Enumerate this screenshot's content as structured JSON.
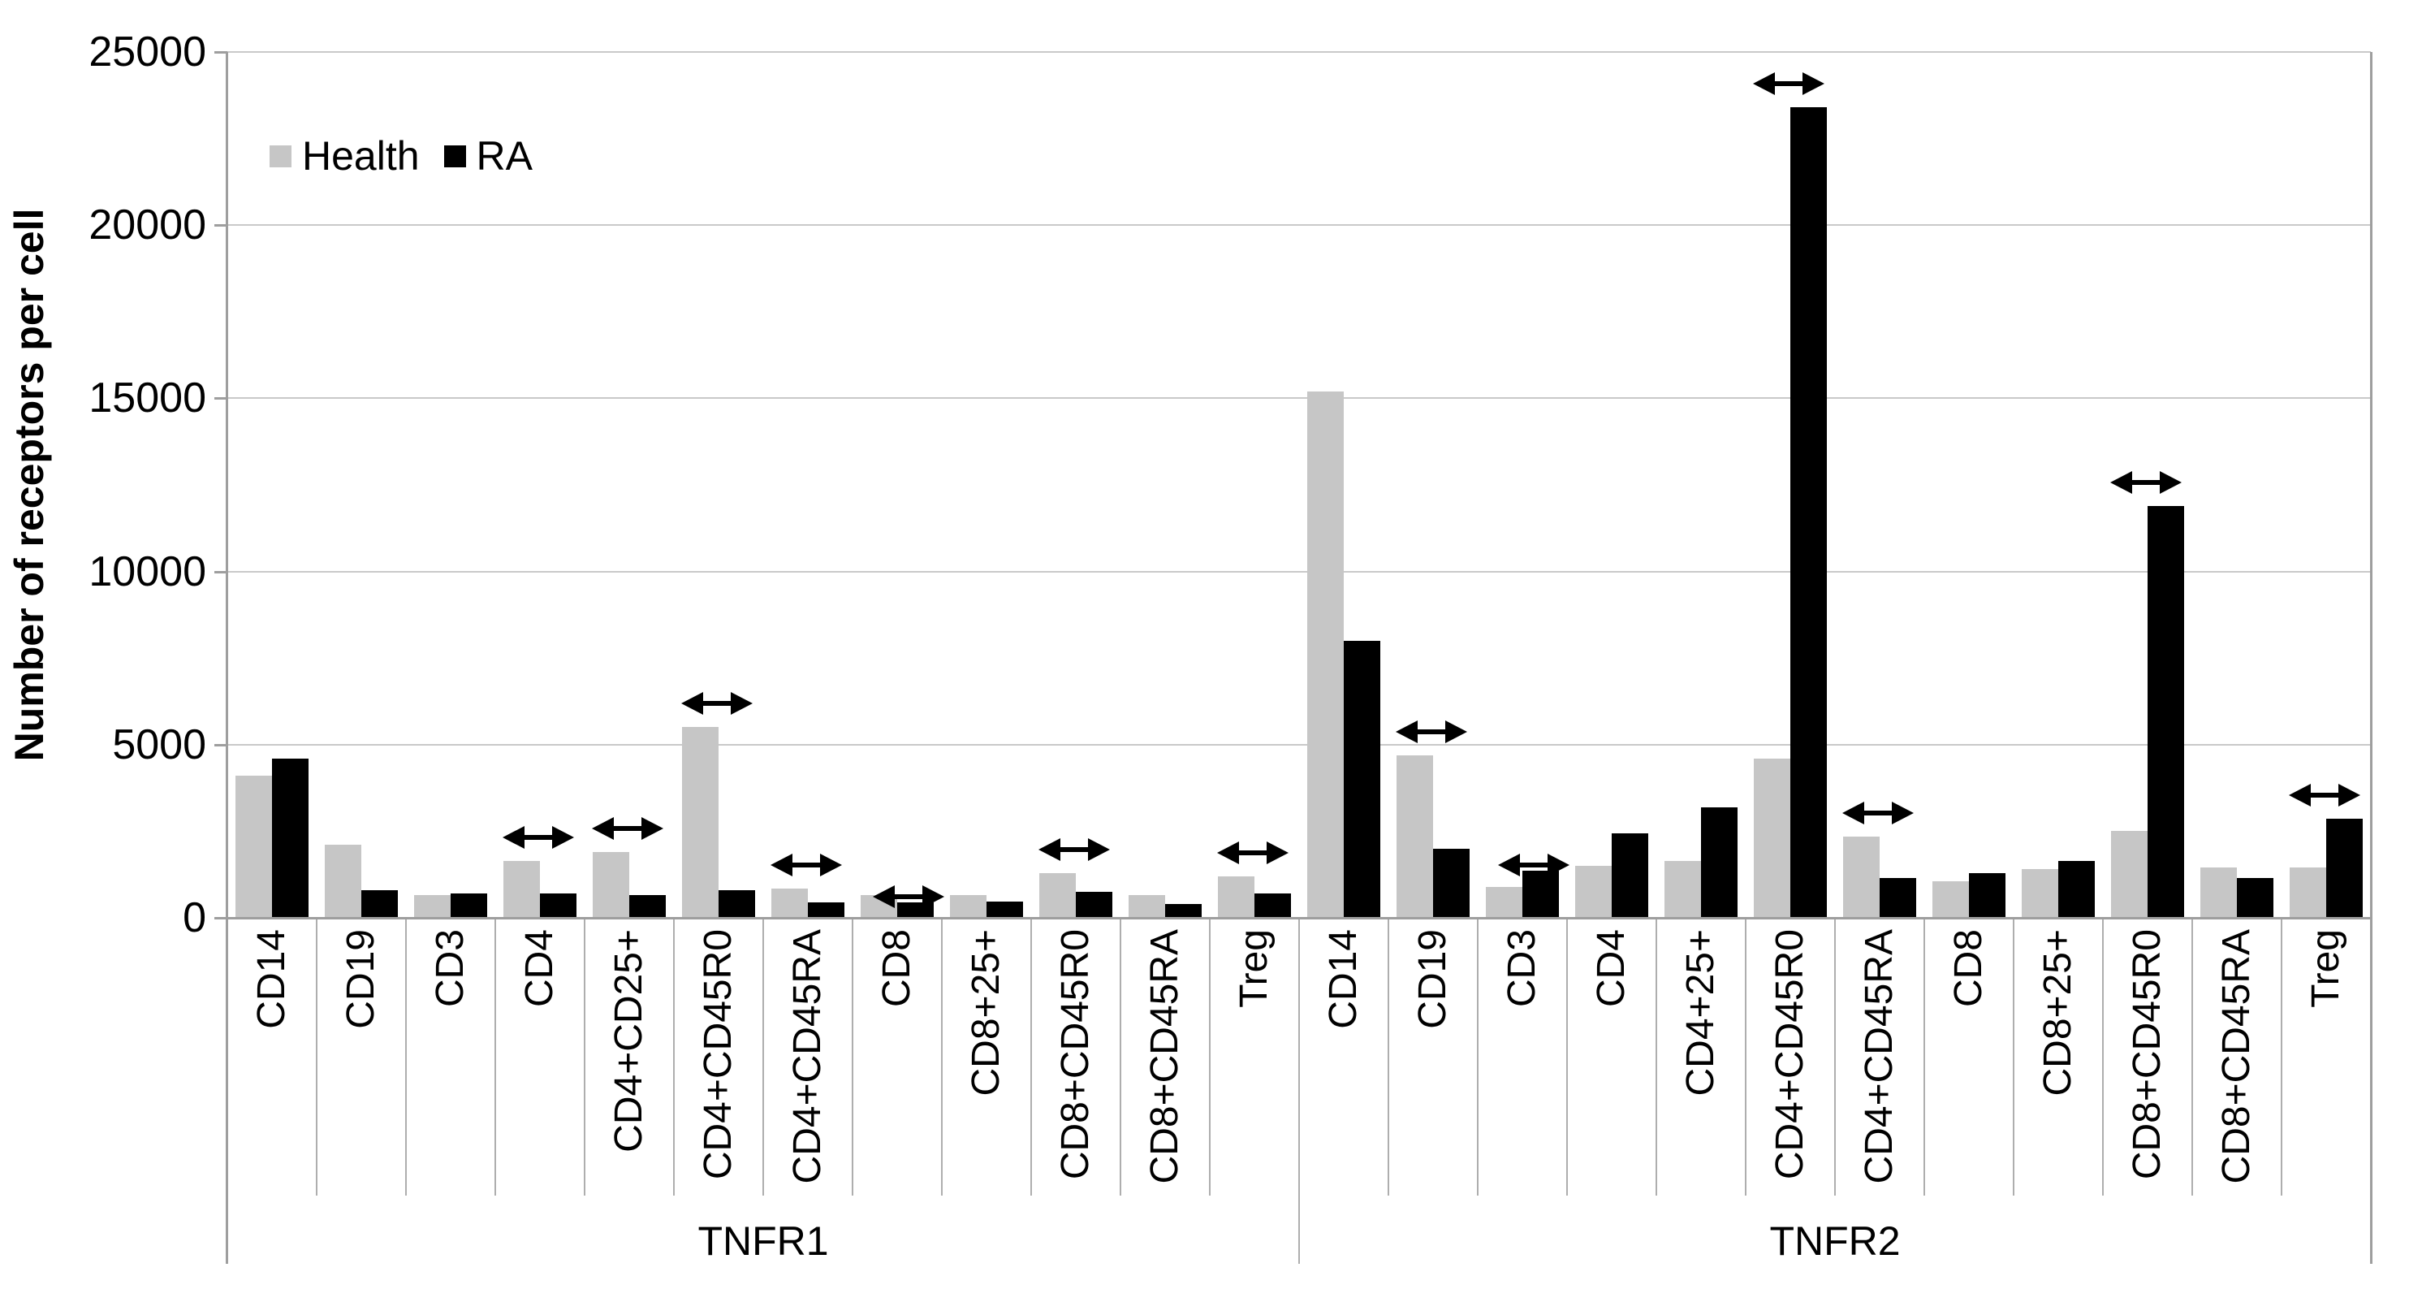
{
  "chart_data": {
    "type": "bar",
    "title": "",
    "ylabel": "Number of receptors per cell",
    "xlabel": "",
    "ylim": [
      0,
      25000
    ],
    "ytick_interval": 5000,
    "ytick_labels": [
      "0",
      "5000",
      "10000",
      "15000",
      "20000",
      "25000"
    ],
    "grid": true,
    "legend_position": "inside-top-left",
    "group_labels": [
      "TNFR1",
      "TNFR2"
    ],
    "categories_per_group": 12,
    "categories": [
      "CD14",
      "CD19",
      "CD3",
      "CD4",
      "CD4+CD25+",
      "CD4+CD45R0",
      "CD4+CD45RA",
      "CD8",
      "CD8+25+",
      "CD8+CD45R0",
      "CD8+CD45RA",
      "Treg",
      "CD14",
      "CD19",
      "CD3",
      "CD4",
      "CD4+25+",
      "CD4+CD45R0",
      "CD4+CD45RA",
      "CD8",
      "CD8+25+",
      "CD8+CD45R0",
      "CD8+CD45RA",
      "Treg"
    ],
    "series": [
      {
        "name": "Health",
        "color": "#c6c6c6",
        "values": [
          4100,
          2100,
          650,
          1650,
          1900,
          5500,
          850,
          650,
          650,
          1300,
          650,
          1200,
          15200,
          4700,
          900,
          1500,
          1650,
          4600,
          2350,
          1050,
          1400,
          2500,
          1450,
          1450
        ]
      },
      {
        "name": "RA",
        "color": "#000000",
        "values": [
          4600,
          800,
          700,
          700,
          650,
          800,
          450,
          450,
          480,
          750,
          400,
          700,
          8000,
          2000,
          1350,
          2450,
          3200,
          23400,
          1150,
          1300,
          1650,
          11900,
          1150,
          2850
        ]
      }
    ],
    "significance_arrows": {
      "symbol": "double-headed-horizontal-arrow",
      "meaning": "marks Health vs RA pairs highlighted in the figure",
      "items": [
        {
          "category_index": 3,
          "placement": "above"
        },
        {
          "category_index": 4,
          "placement": "above"
        },
        {
          "category_index": 5,
          "placement": "above"
        },
        {
          "category_index": 6,
          "placement": "above"
        },
        {
          "category_index": 7,
          "placement": "on-bar"
        },
        {
          "category_index": 9,
          "placement": "above"
        },
        {
          "category_index": 11,
          "placement": "above"
        },
        {
          "category_index": 13,
          "placement": "above"
        },
        {
          "category_index": 14,
          "placement": "on-bar"
        },
        {
          "category_index": 17,
          "placement": "above"
        },
        {
          "category_index": 18,
          "placement": "above"
        },
        {
          "category_index": 21,
          "placement": "above"
        },
        {
          "category_index": 23,
          "placement": "above"
        }
      ]
    },
    "colors": {
      "health_bar": "#c6c6c6",
      "ra_bar": "#000000",
      "gridline": "#c9c9c9",
      "axis": "#9e9e9e",
      "separator": "#aeaeae",
      "text": "#000000",
      "background": "#ffffff"
    }
  }
}
